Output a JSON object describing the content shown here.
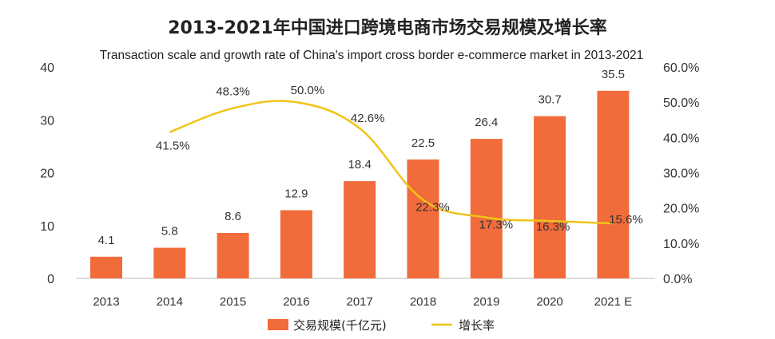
{
  "chart_data": {
    "type": "bar",
    "title": "2013-2021年中国进口跨境电商市场交易规模及增长率",
    "subtitle": "Transaction scale and growth rate of China's import cross border e-commerce market in 2013-2021",
    "categories": [
      "2013",
      "2014",
      "2015",
      "2016",
      "2017",
      "2018",
      "2019",
      "2020",
      "2021 E"
    ],
    "bar_labels": [
      "4.1",
      "5.8",
      "8.6",
      "12.9",
      "18.4",
      "22.5",
      "26.4",
      "30.7",
      "35.5"
    ],
    "line_labels": [
      "",
      "41.5%",
      "48.3%",
      "50.0%",
      "42.6%",
      "22.3%",
      "17.3%",
      "16.3%",
      "15.6%"
    ],
    "series": [
      {
        "name": "交易规模(千亿元)",
        "type": "bar",
        "axis": "left",
        "color": "#F26B3A",
        "values": [
          4.1,
          5.8,
          8.6,
          12.9,
          18.4,
          22.5,
          26.4,
          30.7,
          35.5
        ]
      },
      {
        "name": "增长率",
        "type": "line",
        "axis": "right",
        "color": "#F0C419",
        "values": [
          null,
          41.5,
          48.3,
          50.0,
          42.6,
          22.3,
          17.3,
          16.3,
          15.6
        ]
      }
    ],
    "y_left": {
      "ylim": [
        0,
        40
      ],
      "ticks": [
        0,
        10,
        20,
        30,
        40
      ]
    },
    "y_right": {
      "ylim": [
        0,
        60
      ],
      "ticks": [
        "0.0%",
        "10.0%",
        "20.0%",
        "30.0%",
        "40.0%",
        "50.0%",
        "60.0%"
      ]
    },
    "legend_position": "bottom-center",
    "grid": false
  }
}
